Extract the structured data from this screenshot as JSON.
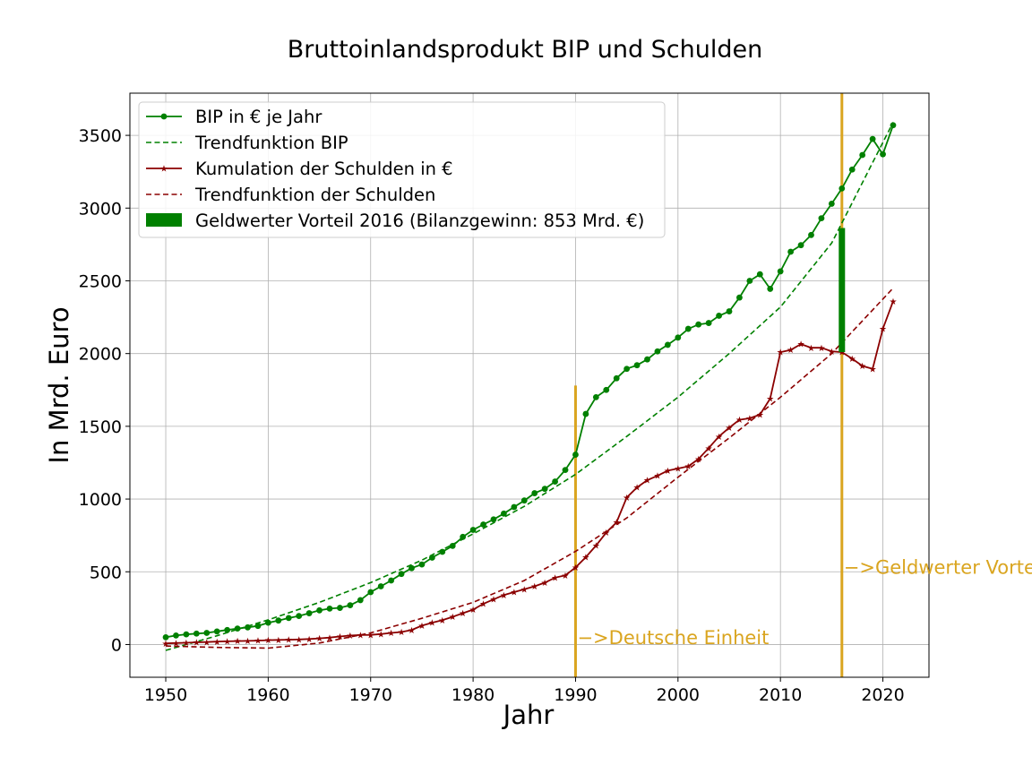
{
  "chart_data": {
    "type": "line",
    "title": "Bruttoinlandsprodukt BIP und Schulden",
    "xlabel": "Jahr",
    "ylabel": "In Mrd. Euro",
    "xlim": [
      1946.5,
      2024.5
    ],
    "ylim": [
      -225,
      3790
    ],
    "xticks": [
      1950,
      1960,
      1970,
      1980,
      1990,
      2000,
      2010,
      2020
    ],
    "yticks": [
      0,
      500,
      1000,
      1500,
      2000,
      2500,
      3000,
      3500
    ],
    "grid": true,
    "legend_position": "top-left",
    "series": [
      {
        "name": "BIP in € je Jahr",
        "kind": "line-marker-circle",
        "color": "#008000",
        "x": [
          1950,
          1951,
          1952,
          1953,
          1954,
          1955,
          1956,
          1957,
          1958,
          1959,
          1960,
          1961,
          1962,
          1963,
          1964,
          1965,
          1966,
          1967,
          1968,
          1969,
          1970,
          1971,
          1972,
          1973,
          1974,
          1975,
          1976,
          1977,
          1978,
          1979,
          1980,
          1981,
          1982,
          1983,
          1984,
          1985,
          1986,
          1987,
          1988,
          1989,
          1990,
          1991,
          1992,
          1993,
          1994,
          1995,
          1996,
          1997,
          1998,
          1999,
          2000,
          2001,
          2002,
          2003,
          2004,
          2005,
          2006,
          2007,
          2008,
          2009,
          2010,
          2011,
          2012,
          2013,
          2014,
          2015,
          2016,
          2017,
          2018,
          2019,
          2020,
          2021
        ],
        "y": [
          50,
          62,
          70,
          75,
          80,
          90,
          100,
          110,
          118,
          128,
          150,
          165,
          182,
          196,
          215,
          235,
          247,
          252,
          270,
          305,
          360,
          400,
          440,
          485,
          525,
          550,
          597,
          637,
          678,
          740,
          788,
          825,
          860,
          900,
          945,
          990,
          1040,
          1070,
          1120,
          1200,
          1305,
          1585,
          1700,
          1750,
          1830,
          1895,
          1920,
          1960,
          2015,
          2060,
          2110,
          2170,
          2200,
          2210,
          2260,
          2290,
          2385,
          2500,
          2545,
          2445,
          2565,
          2700,
          2745,
          2815,
          2930,
          3030,
          3135,
          3265,
          3365,
          3475,
          3370,
          3570
        ]
      },
      {
        "name": "Trendfunktion BIP",
        "kind": "dashed",
        "color": "#008000",
        "x": [
          1950,
          1955,
          1960,
          1965,
          1970,
          1975,
          1980,
          1985,
          1990,
          1995,
          2000,
          2005,
          2010,
          2015,
          2021
        ],
        "y": [
          -40,
          60,
          170,
          290,
          425,
          580,
          760,
          950,
          1170,
          1430,
          1700,
          2000,
          2320,
          2760,
          3590
        ]
      },
      {
        "name": "Kumulation der Schulden in €",
        "kind": "line-marker-star",
        "color": "#8B0000",
        "x": [
          1950,
          1951,
          1952,
          1953,
          1954,
          1955,
          1956,
          1957,
          1958,
          1959,
          1960,
          1961,
          1962,
          1963,
          1964,
          1965,
          1966,
          1967,
          1968,
          1969,
          1970,
          1971,
          1972,
          1973,
          1974,
          1975,
          1976,
          1977,
          1978,
          1979,
          1980,
          1981,
          1982,
          1983,
          1984,
          1985,
          1986,
          1987,
          1988,
          1989,
          1990,
          1991,
          1992,
          1993,
          1994,
          1995,
          1996,
          1997,
          1998,
          1999,
          2000,
          2001,
          2002,
          2003,
          2004,
          2005,
          2006,
          2007,
          2008,
          2009,
          2010,
          2011,
          2012,
          2013,
          2014,
          2015,
          2016,
          2017,
          2018,
          2019,
          2020,
          2021
        ],
        "y": [
          8,
          10,
          12,
          15,
          17,
          20,
          22,
          24,
          25,
          27,
          30,
          32,
          33,
          35,
          38,
          42,
          48,
          55,
          62,
          65,
          66,
          72,
          80,
          86,
          100,
          130,
          150,
          168,
          190,
          215,
          240,
          280,
          310,
          340,
          360,
          380,
          400,
          425,
          460,
          475,
          530,
          600,
          680,
          770,
          840,
          1010,
          1080,
          1130,
          1160,
          1195,
          1210,
          1225,
          1275,
          1350,
          1430,
          1490,
          1545,
          1555,
          1580,
          1690,
          2010,
          2025,
          2065,
          2040,
          2040,
          2015,
          2010,
          1965,
          1915,
          1895,
          2170,
          2360
        ]
      },
      {
        "name": "Trendfunktion der Schulden",
        "kind": "dashed",
        "color": "#8B0000",
        "x": [
          1950,
          1955,
          1960,
          1965,
          1970,
          1975,
          1980,
          1985,
          1990,
          1995,
          2000,
          2005,
          2010,
          2015,
          2021
        ],
        "y": [
          -10,
          -20,
          -25,
          10,
          80,
          180,
          290,
          440,
          640,
          870,
          1150,
          1420,
          1700,
          2000,
          2450
        ]
      }
    ],
    "bar": {
      "name": "Geldwerter Vorteil 2016 (Bilanzgewinn: 853 Mrd. €)",
      "x": 2016,
      "y_bottom": 2010,
      "y_top": 2863,
      "color": "#008000"
    },
    "vlines": [
      {
        "x": 1990,
        "y_top": 1780,
        "color": "#DAA520",
        "label": "$->$Deutsche Einheit",
        "text": "−>Deutsche Einheit",
        "label_y": 45
      },
      {
        "x": 2016,
        "y_top": null,
        "color": "#DAA520",
        "text": "−>Geldwerter Vorteil",
        "label_y": 530
      }
    ]
  }
}
